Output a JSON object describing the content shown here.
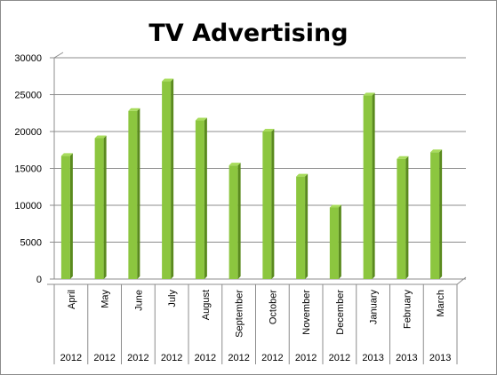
{
  "chart_data": {
    "type": "bar",
    "title": "TV Advertising",
    "categories": [
      "April",
      "May",
      "June",
      "July",
      "August",
      "September",
      "October",
      "November",
      "December",
      "January",
      "February",
      "March"
    ],
    "years": [
      "2012",
      "2012",
      "2012",
      "2012",
      "2012",
      "2012",
      "2012",
      "2012",
      "2012",
      "2013",
      "2013",
      "2013"
    ],
    "values": [
      16700,
      19100,
      22800,
      26800,
      21500,
      15400,
      20000,
      13900,
      9700,
      24900,
      16300,
      17200
    ],
    "yticks": [
      "0",
      "5000",
      "10000",
      "15000",
      "20000",
      "25000",
      "30000"
    ],
    "ylim": [
      0,
      30000
    ],
    "xlabel": "",
    "ylabel": "",
    "grid": true,
    "legend": "none",
    "bar_color": "#8cc63f",
    "bar_side_color": "#5a8a1e",
    "bar_top_color": "#a8dc5c"
  }
}
